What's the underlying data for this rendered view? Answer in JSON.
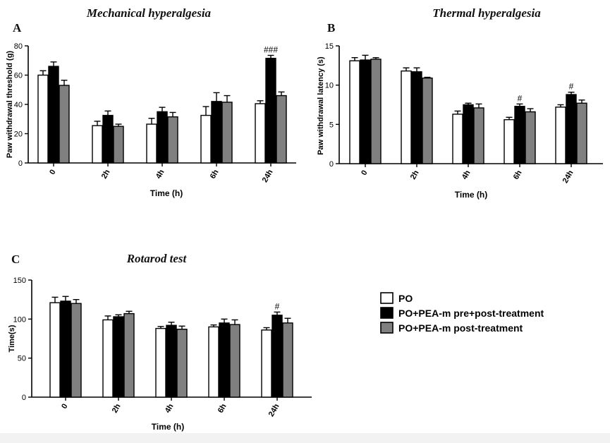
{
  "chart_data": [
    {
      "type": "bar",
      "panel_label": "A",
      "title": "Mechanical hyperalgesia",
      "xlabel": "Time (h)",
      "ylabel": "Paw withdrawal threshold (g)",
      "ylim": [
        0,
        80
      ],
      "yticks": [
        "0",
        "20",
        "40",
        "60",
        "80"
      ],
      "categories": [
        "0",
        "2h",
        "4h",
        "6h",
        "24h"
      ],
      "series": [
        {
          "name": "PO",
          "values": [
            60,
            25.5,
            26.5,
            32.5,
            40.5
          ],
          "errors": [
            3,
            3,
            4,
            6,
            2
          ]
        },
        {
          "name": "PO+PEA-m pre+post-treatment",
          "values": [
            66,
            32.5,
            35,
            42,
            71.5
          ],
          "errors": [
            3,
            3,
            3,
            6,
            2
          ]
        },
        {
          "name": "PO+PEA-m post-treatment",
          "values": [
            53,
            25,
            31.5,
            41.5,
            46
          ],
          "errors": [
            3.5,
            1.5,
            3,
            4.5,
            2.5
          ]
        }
      ],
      "annotations": [
        {
          "category": "24h",
          "series": 1,
          "text": "###"
        }
      ]
    },
    {
      "type": "bar",
      "panel_label": "B",
      "title": "Thermal hyperalgesia",
      "xlabel": "Time (h)",
      "ylabel": "Paw withdrawal latency (s)",
      "ylim": [
        0,
        15
      ],
      "yticks": [
        "0",
        "5",
        "10",
        "15"
      ],
      "categories": [
        "0",
        "2h",
        "4h",
        "6h",
        "24h"
      ],
      "series": [
        {
          "name": "PO",
          "values": [
            13.1,
            11.8,
            6.3,
            5.6,
            7.2
          ],
          "errors": [
            0.4,
            0.4,
            0.4,
            0.3,
            0.3
          ]
        },
        {
          "name": "PO+PEA-m pre+post-treatment",
          "values": [
            13.2,
            11.7,
            7.5,
            7.3,
            8.8
          ],
          "errors": [
            0.6,
            0.5,
            0.2,
            0.3,
            0.3
          ]
        },
        {
          "name": "PO+PEA-m post-treatment",
          "values": [
            13.3,
            10.9,
            7.1,
            6.6,
            7.7
          ],
          "errors": [
            0.2,
            0.1,
            0.5,
            0.4,
            0.4
          ]
        }
      ],
      "annotations": [
        {
          "category": "6h",
          "series": 1,
          "text": "#"
        },
        {
          "category": "24h",
          "series": 1,
          "text": "#"
        }
      ]
    },
    {
      "type": "bar",
      "panel_label": "C",
      "title": "Rotarod test",
      "xlabel": "Time (h)",
      "ylabel": "Time(s)",
      "ylim": [
        0,
        150
      ],
      "yticks": [
        "0",
        "50",
        "100",
        "150"
      ],
      "categories": [
        "0",
        "2h",
        "4h",
        "6h",
        "24h"
      ],
      "series": [
        {
          "name": "PO",
          "values": [
            121,
            99,
            88,
            90,
            86
          ],
          "errors": [
            7,
            5,
            2.5,
            2.5,
            3
          ]
        },
        {
          "name": "PO+PEA-m pre+post-treatment",
          "values": [
            123,
            103,
            92,
            95,
            105
          ],
          "errors": [
            6,
            2.5,
            4,
            5,
            4
          ]
        },
        {
          "name": "PO+PEA-m post-treatment",
          "values": [
            120,
            107,
            87,
            93,
            95
          ],
          "errors": [
            5,
            3,
            4,
            6,
            6
          ]
        }
      ],
      "annotations": [
        {
          "category": "24h",
          "series": 1,
          "text": "#"
        }
      ]
    }
  ],
  "legend": {
    "items": [
      {
        "label": "PO",
        "color": "#ffffff"
      },
      {
        "label": "PO+PEA-m pre+post-treatment",
        "color": "#000000"
      },
      {
        "label": "PO+PEA-m post-treatment",
        "color": "#808080"
      }
    ]
  },
  "colors": {
    "series": [
      "#ffffff",
      "#000000",
      "#808080"
    ]
  }
}
